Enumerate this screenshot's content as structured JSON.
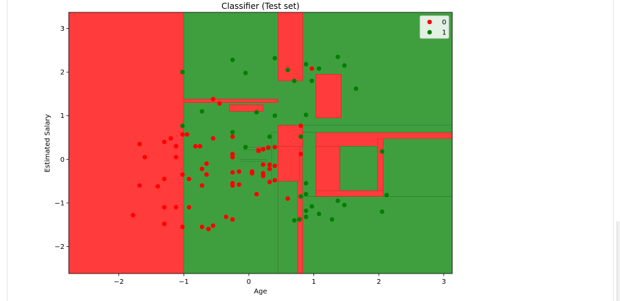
{
  "chart_data": {
    "type": "scatter",
    "title": "Classifier (Test set)",
    "xlabel": "Age",
    "ylabel": "Estimated Salary",
    "xlim": [
      -2.77,
      3.13
    ],
    "ylim": [
      -2.62,
      3.37
    ],
    "xticks": [
      -2,
      -1,
      0,
      1,
      2,
      3
    ],
    "yticks": [
      -2,
      -1,
      0,
      1,
      2,
      3
    ],
    "legend_position": "top-right",
    "colors": {
      "class_0_region": "#ff3b3b",
      "class_1_region": "#3f9f3f",
      "class_0_point": "#ff0000",
      "class_1_point": "#008000"
    },
    "regions": {
      "class_1": [
        [
          [
            -1.0,
            3.37
          ],
          [
            3.13,
            3.37
          ],
          [
            3.13,
            -2.62
          ],
          [
            -1.0,
            -2.62
          ]
        ]
      ],
      "class_0": [
        [
          [
            0.45,
            0.62
          ],
          [
            3.13,
            0.62
          ],
          [
            3.13,
            -2.62
          ],
          [
            0.45,
            -2.62
          ]
        ],
        [
          [
            0.45,
            3.37
          ],
          [
            0.83,
            3.37
          ],
          [
            0.83,
            1.8
          ],
          [
            0.45,
            1.8
          ]
        ],
        [
          [
            1.03,
            1.95
          ],
          [
            1.42,
            1.95
          ],
          [
            1.42,
            0.95
          ],
          [
            1.03,
            0.95
          ]
        ],
        [
          [
            -1.0,
            1.38
          ],
          [
            0.45,
            1.38
          ],
          [
            0.45,
            1.3
          ],
          [
            -1.0,
            1.3
          ]
        ],
        [
          [
            -0.3,
            1.25
          ],
          [
            0.22,
            1.25
          ],
          [
            0.22,
            1.1
          ],
          [
            -0.3,
            1.1
          ]
        ]
      ],
      "class_1_over": [
        [
          [
            0.45,
            0.62
          ],
          [
            0.35,
            0.62
          ],
          [
            0.35,
            -0.5
          ],
          [
            0.45,
            -0.5
          ]
        ],
        [
          [
            0.45,
            -0.5
          ],
          [
            0.75,
            -0.5
          ],
          [
            0.75,
            -2.62
          ],
          [
            0.45,
            -2.62
          ]
        ],
        [
          [
            0.83,
            -2.62
          ],
          [
            3.13,
            -2.62
          ],
          [
            3.13,
            -0.85
          ],
          [
            0.83,
            -0.85
          ]
        ],
        [
          [
            0.83,
            0.62
          ],
          [
            1.03,
            0.62
          ],
          [
            1.03,
            -0.85
          ],
          [
            0.83,
            -0.85
          ]
        ],
        [
          [
            0.83,
            0.62
          ],
          [
            3.13,
            0.62
          ],
          [
            3.13,
            0.78
          ],
          [
            0.83,
            0.78
          ]
        ],
        [
          [
            1.4,
            0.3
          ],
          [
            1.4,
            -0.72
          ],
          [
            1.98,
            -0.72
          ],
          [
            1.98,
            0.3
          ]
        ],
        [
          [
            2.07,
            0.47
          ],
          [
            3.13,
            0.47
          ],
          [
            3.13,
            -0.85
          ],
          [
            2.07,
            -0.85
          ]
        ],
        [
          [
            0.45,
            0.78
          ],
          [
            0.82,
            0.78
          ],
          [
            0.82,
            0.62
          ],
          [
            0.45,
            0.62
          ]
        ],
        [
          [
            -0.12,
            0.0
          ],
          [
            0.27,
            0.0
          ],
          [
            0.27,
            -0.05
          ],
          [
            -0.12,
            -0.05
          ]
        ],
        [
          [
            -0.08,
            0.28
          ],
          [
            0.35,
            0.28
          ],
          [
            0.35,
            0.22
          ],
          [
            -0.08,
            0.22
          ]
        ]
      ],
      "class_0_over": [
        [
          [
            0.45,
            0.78
          ],
          [
            0.83,
            0.78
          ],
          [
            0.83,
            0.3
          ],
          [
            0.45,
            0.3
          ]
        ],
        [
          [
            0.45,
            0.3
          ],
          [
            0.78,
            0.3
          ],
          [
            0.78,
            -0.5
          ],
          [
            0.45,
            -0.5
          ]
        ],
        [
          [
            0.75,
            -1.35
          ],
          [
            0.83,
            -1.35
          ],
          [
            0.83,
            -2.62
          ],
          [
            0.75,
            -2.62
          ]
        ],
        [
          [
            1.03,
            0.3
          ],
          [
            1.4,
            0.3
          ],
          [
            1.4,
            -0.85
          ],
          [
            1.03,
            -0.85
          ]
        ],
        [
          [
            1.03,
            -0.72
          ],
          [
            2.07,
            -0.72
          ],
          [
            2.07,
            -0.85
          ],
          [
            1.03,
            -0.85
          ]
        ],
        [
          [
            1.98,
            0.47
          ],
          [
            2.07,
            0.47
          ],
          [
            2.07,
            -0.72
          ],
          [
            1.98,
            -0.72
          ]
        ],
        [
          [
            0.12,
            0.28
          ],
          [
            0.18,
            0.28
          ],
          [
            0.18,
            0.15
          ],
          [
            0.12,
            0.15
          ]
        ]
      ]
    },
    "series": [
      {
        "name": "0",
        "points": [
          [
            -1.78,
            -1.28
          ],
          [
            -1.68,
            0.35
          ],
          [
            -1.68,
            -0.6
          ],
          [
            -1.6,
            0.05
          ],
          [
            -1.4,
            -0.62
          ],
          [
            -1.3,
            0.4
          ],
          [
            -1.3,
            -0.45
          ],
          [
            -1.3,
            -1.1
          ],
          [
            -1.3,
            -1.48
          ],
          [
            -1.2,
            0.48
          ],
          [
            -1.12,
            0.3
          ],
          [
            -1.12,
            0.05
          ],
          [
            -1.12,
            -1.1
          ],
          [
            -1.02,
            0.57
          ],
          [
            -1.02,
            -0.35
          ],
          [
            -1.02,
            -1.55
          ],
          [
            -0.95,
            0.57
          ],
          [
            -0.92,
            -0.45
          ],
          [
            -0.92,
            -1.1
          ],
          [
            -0.82,
            0.3
          ],
          [
            -0.75,
            0.3
          ],
          [
            -0.72,
            -0.22
          ],
          [
            -0.72,
            -0.6
          ],
          [
            -0.72,
            -1.55
          ],
          [
            -0.65,
            -0.1
          ],
          [
            -0.65,
            -0.35
          ],
          [
            -0.62,
            -1.6
          ],
          [
            -0.55,
            -1.52
          ],
          [
            -0.55,
            0.48
          ],
          [
            -0.55,
            1.38
          ],
          [
            -0.45,
            1.28
          ],
          [
            -0.35,
            -1.32
          ],
          [
            -0.25,
            -1.38
          ],
          [
            -0.25,
            0.52
          ],
          [
            -0.25,
            0.12
          ],
          [
            -0.25,
            0.05
          ],
          [
            -0.25,
            -0.3
          ],
          [
            -0.25,
            -0.55
          ],
          [
            -0.25,
            -0.6
          ],
          [
            -0.15,
            -0.28
          ],
          [
            -0.15,
            -0.58
          ],
          [
            0.05,
            -0.28
          ],
          [
            0.05,
            -0.32
          ],
          [
            0.12,
            -0.8
          ],
          [
            0.15,
            0.2
          ],
          [
            0.22,
            0.23
          ],
          [
            0.22,
            -0.12
          ],
          [
            0.22,
            -0.32
          ],
          [
            0.22,
            -0.38
          ],
          [
            0.3,
            0.27
          ],
          [
            0.32,
            -0.12
          ],
          [
            0.32,
            -0.22
          ],
          [
            0.32,
            -0.52
          ],
          [
            0.4,
            -0.15
          ],
          [
            0.4,
            0.28
          ],
          [
            0.4,
            -0.48
          ],
          [
            0.6,
            -0.9
          ],
          [
            0.8,
            0.77
          ],
          [
            0.8,
            0.12
          ],
          [
            0.97,
            2.08
          ]
        ]
      },
      {
        "name": "1",
        "points": [
          [
            -1.02,
            2.0
          ],
          [
            -1.02,
            0.77
          ],
          [
            -0.72,
            1.1
          ],
          [
            -0.25,
            2.28
          ],
          [
            -0.25,
            0.62
          ],
          [
            -0.05,
            1.98
          ],
          [
            -0.05,
            0.28
          ],
          [
            0.12,
            1.08
          ],
          [
            0.32,
            0.52
          ],
          [
            0.4,
            2.32
          ],
          [
            0.4,
            1.0
          ],
          [
            0.6,
            2.05
          ],
          [
            0.7,
            1.8
          ],
          [
            0.7,
            -1.4
          ],
          [
            0.78,
            -1.38
          ],
          [
            0.8,
            0.52
          ],
          [
            0.8,
            -0.85
          ],
          [
            0.88,
            2.18
          ],
          [
            0.88,
            1.02
          ],
          [
            0.88,
            -0.55
          ],
          [
            0.88,
            -0.8
          ],
          [
            0.88,
            -1.18
          ],
          [
            0.88,
            -1.32
          ],
          [
            0.97,
            1.8
          ],
          [
            0.97,
            -1.08
          ],
          [
            1.08,
            2.08
          ],
          [
            1.08,
            -1.25
          ],
          [
            1.28,
            -1.38
          ],
          [
            1.37,
            2.35
          ],
          [
            1.37,
            -0.95
          ],
          [
            1.47,
            2.15
          ],
          [
            1.47,
            -1.05
          ],
          [
            1.65,
            1.62
          ],
          [
            2.05,
            0.18
          ],
          [
            2.05,
            -1.2
          ],
          [
            2.12,
            -0.82
          ]
        ]
      }
    ]
  }
}
